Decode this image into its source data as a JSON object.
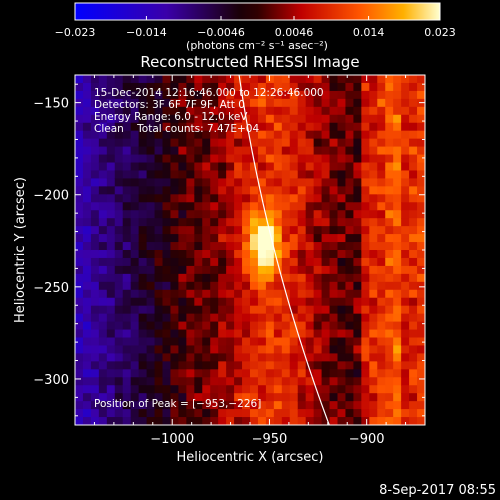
{
  "chart_data": {
    "type": "heatmap",
    "title": "Reconstructed RHESSI Image",
    "xlabel": "Heliocentric X (arcsec)",
    "ylabel": "Heliocentric Y (arcsec)",
    "xlim": [
      -1050,
      -870
    ],
    "ylim": [
      -325,
      -135
    ],
    "x_ticks": [
      -1000,
      -950,
      -900
    ],
    "y_ticks": [
      -150,
      -200,
      -250,
      -300
    ],
    "x_tick_labels": [
      "−1000",
      "−950",
      "−900"
    ],
    "y_tick_labels": [
      "−150",
      "−200",
      "−250",
      "−300"
    ],
    "colorbar": {
      "min": -0.023,
      "max": 0.023,
      "ticks": [
        -0.023,
        -0.014,
        -0.0046,
        0.0046,
        0.014,
        0.023
      ],
      "tick_labels": [
        "−0.023",
        "−0.014",
        "−0.0046",
        "0.0046",
        "0.014",
        "0.023"
      ],
      "unit_label": "(photons cm⁻² s⁻¹ asec⁻²)"
    },
    "peak": {
      "x": -953,
      "y": -226
    },
    "limb": true,
    "grid": false
  },
  "info": {
    "time_range": "15-Dec-2014 12:16:46.000 to 12:26:46.000",
    "detectors": "Detectors: 3F 6F 7F 9F, Att 0",
    "energy": "Energy Range: 6.0 - 12.0 keV",
    "clean": "Clean    Total counts: 7.47E+04",
    "peak_label": "Position of Peak = [−953,−226]"
  },
  "footer": {
    "date": "8-Sep-2017 08:55"
  }
}
